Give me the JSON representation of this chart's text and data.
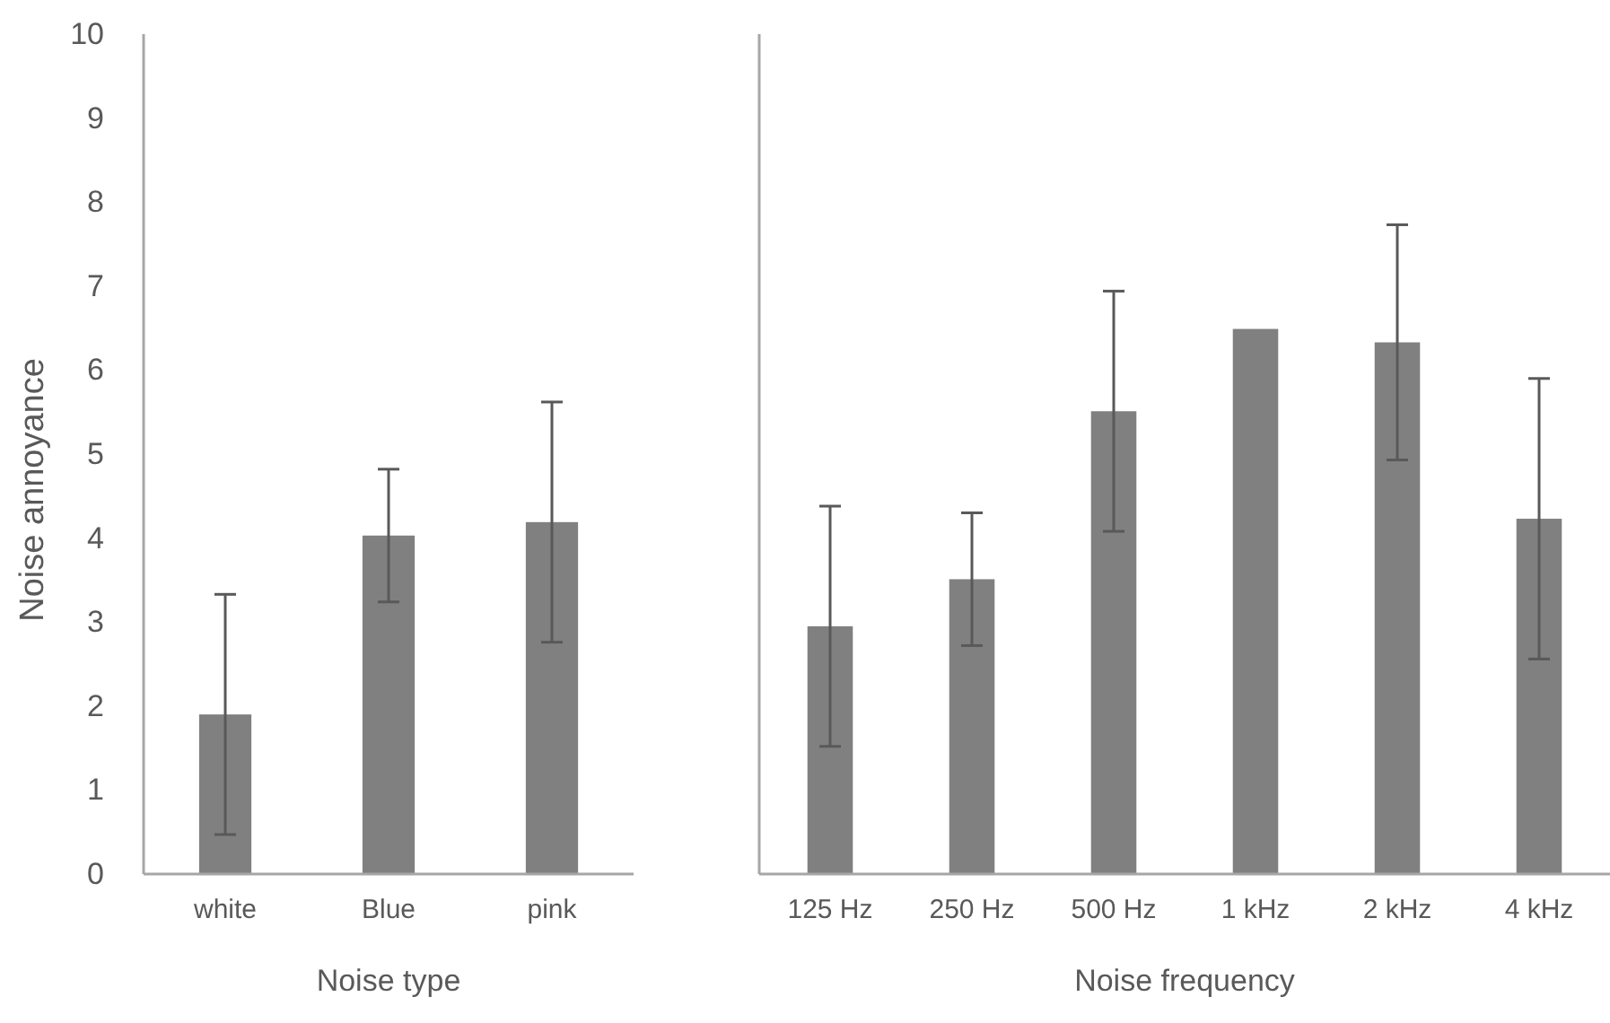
{
  "chart_data": [
    {
      "type": "bar",
      "xlabel": "Noise type",
      "ylabel": "Noise annoyance",
      "categories": [
        "white",
        "Blue",
        "pink"
      ],
      "values": [
        1.9,
        4.03,
        4.19
      ],
      "errors": [
        1.43,
        0.79,
        1.43
      ],
      "color": "#808080",
      "ylim": [
        0,
        10
      ],
      "yticks": [
        0,
        1,
        2,
        3,
        4,
        5,
        6,
        7,
        8,
        9,
        10
      ]
    },
    {
      "type": "bar",
      "xlabel": "Noise frequency",
      "categories": [
        "125 Hz",
        "250 Hz",
        "500 Hz",
        "1 kHz",
        "2 kHz",
        "4 kHz"
      ],
      "values": [
        2.95,
        3.51,
        5.51,
        6.49,
        6.33,
        4.23
      ],
      "errors": [
        1.43,
        0.79,
        1.43,
        null,
        1.4,
        1.67
      ],
      "color": "#808080",
      "ylim": [
        0,
        10
      ],
      "yticks": [
        0,
        1,
        2,
        3,
        4,
        5,
        6,
        7,
        8,
        9,
        10
      ],
      "tick_labels": "x"
    }
  ]
}
